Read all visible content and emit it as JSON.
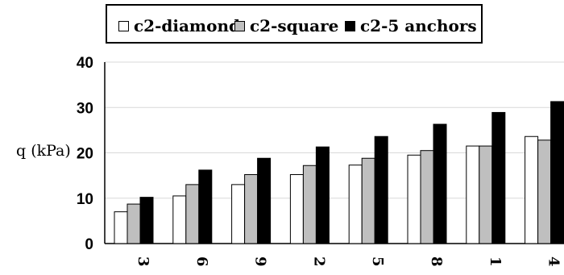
{
  "chart_data": {
    "type": "bar",
    "categories": [
      "3",
      "6",
      "9",
      "2",
      "5",
      "8",
      "1",
      "4"
    ],
    "series": [
      {
        "name": "c2-diamond",
        "values": [
          7,
          10.5,
          13,
          15.2,
          17.3,
          19.5,
          21.5,
          23.6
        ]
      },
      {
        "name": "c2-square",
        "values": [
          8.7,
          13,
          15.2,
          17.2,
          18.8,
          20.5,
          21.5,
          22.8
        ]
      },
      {
        "name": "c2-5 anchors",
        "values": [
          10.2,
          16.2,
          18.8,
          21.3,
          23.6,
          26.3,
          28.9,
          31.3
        ]
      }
    ],
    "colors": {
      "c2-diamond": "#ffffff",
      "c2-square": "#bfbfbf",
      "c2-5 anchors": "#000000"
    },
    "ylabel": "q (kPa)",
    "xlabel": "",
    "ylim": [
      0,
      40
    ],
    "yticks": [
      "0",
      "10",
      "20",
      "30",
      "40"
    ],
    "grid": true,
    "legend_position": "top"
  }
}
